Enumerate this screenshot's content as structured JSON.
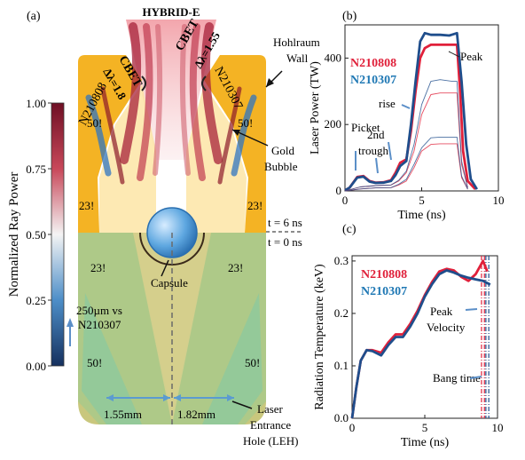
{
  "panel_a": {
    "label": "(a)",
    "title": "HYBRID-E",
    "cbet_left": "CBET",
    "cbet_left_delta": "Δλ=1.8",
    "cbet_right": "CBET",
    "cbet_right_delta": "Δλ=1.55",
    "shot_left": "N210808",
    "shot_right": "N210307",
    "hohlraum_wall": [
      "Hohlraum",
      "Wall"
    ],
    "gold_bubble": [
      "Gold",
      "Bubble"
    ],
    "time_top": "t = 6 ns",
    "time_bottom": "t = 0 ns",
    "capsule": "Capsule",
    "beam_angles": {
      "a23_left_upper": "23!",
      "a23_right_upper": "23!",
      "a50_left_upper": "50!",
      "a50_right_upper": "50!",
      "a23_left_lower": "23!",
      "a23_right_lower": "23!",
      "a50_left_lower": "50!",
      "a50_right_lower": "50!"
    },
    "note": [
      "250µm vs",
      "N210307"
    ],
    "leh_left": "1.55mm",
    "leh_right": "1.82mm",
    "leh_label": [
      "Laser",
      "Entrance",
      "Hole (LEH)"
    ],
    "colorbar": {
      "label": "Normalized Ray Power",
      "ticks": [
        "1.00",
        "0.75",
        "0.50",
        "0.25",
        "0.00"
      ],
      "color_high": "#8b1a2b",
      "color_mid": "#f2f2f2",
      "color_low": "#1f3f7a"
    }
  },
  "chart_data": [
    {
      "type": "line",
      "panel_label": "(b)",
      "title": "",
      "xlabel": "Time (ns)",
      "ylabel": "Laser Power (TW)",
      "xlim": [
        0,
        10
      ],
      "ylim": [
        0,
        500
      ],
      "xticks": [
        "0",
        "5",
        "10"
      ],
      "yticks": [
        "0",
        "200",
        "400"
      ],
      "legend": [
        "N210808",
        "N210307"
      ],
      "annotations": [
        "Peak",
        "rise",
        "Picket",
        "2nd",
        "trough"
      ],
      "series": [
        {
          "name": "N210808",
          "color": "#e0203a",
          "x": [
            0,
            0.3,
            0.8,
            1.2,
            1.6,
            2.0,
            2.5,
            3.0,
            3.3,
            3.6,
            4.0,
            4.3,
            4.6,
            4.9,
            5.2,
            5.6,
            6.5,
            7.0,
            7.3,
            7.5,
            7.7,
            8.0,
            8.5
          ],
          "y": [
            2,
            10,
            42,
            45,
            30,
            25,
            26,
            32,
            55,
            85,
            95,
            180,
            300,
            400,
            430,
            440,
            440,
            440,
            440,
            300,
            120,
            30,
            5
          ]
        },
        {
          "name": "N210307",
          "color": "#1f4e8c",
          "x": [
            0,
            0.3,
            0.8,
            1.2,
            1.6,
            2.0,
            2.5,
            3.0,
            3.3,
            3.6,
            4.0,
            4.3,
            4.6,
            4.9,
            5.2,
            5.6,
            6.2,
            6.8,
            7.3,
            7.6,
            7.9,
            8.2,
            8.6
          ],
          "y": [
            2,
            10,
            40,
            43,
            28,
            24,
            25,
            30,
            48,
            75,
            90,
            200,
            330,
            450,
            475,
            470,
            470,
            468,
            475,
            330,
            140,
            35,
            5
          ]
        },
        {
          "name": "",
          "color": "#e0203a",
          "x": [
            0,
            1,
            2,
            3,
            3.5,
            4,
            4.5,
            5,
            5.6,
            6.2,
            7,
            7.3,
            7.6,
            8
          ],
          "y": [
            0,
            12,
            16,
            18,
            30,
            55,
            120,
            230,
            290,
            295,
            295,
            295,
            80,
            10
          ]
        },
        {
          "name": "",
          "color": "#1f4e8c",
          "x": [
            0,
            1,
            2,
            3,
            3.5,
            4,
            4.5,
            5,
            5.6,
            6.2,
            7,
            7.3,
            7.6,
            8
          ],
          "y": [
            0,
            12,
            16,
            18,
            32,
            60,
            140,
            260,
            330,
            335,
            330,
            330,
            90,
            10
          ]
        },
        {
          "name": "",
          "color": "#e0203a",
          "x": [
            0,
            1,
            2,
            3,
            3.5,
            4,
            4.5,
            5,
            5.6,
            6.2,
            7,
            7.3,
            7.6,
            8
          ],
          "y": [
            0,
            6,
            9,
            10,
            18,
            30,
            70,
            120,
            140,
            142,
            142,
            142,
            40,
            5
          ]
        },
        {
          "name": "",
          "color": "#1f4e8c",
          "x": [
            0,
            1,
            2,
            3,
            3.5,
            4,
            4.5,
            5,
            5.6,
            6.2,
            7,
            7.3,
            7.6,
            8
          ],
          "y": [
            0,
            6,
            9,
            10,
            20,
            35,
            80,
            130,
            160,
            162,
            162,
            162,
            45,
            5
          ]
        }
      ]
    },
    {
      "type": "line",
      "panel_label": "(c)",
      "title": "",
      "xlabel": "Time (ns)",
      "ylabel": "Radiation Temperature (keV)",
      "xlim": [
        0,
        10
      ],
      "ylim": [
        0,
        0.31
      ],
      "xticks": [
        "0",
        "5",
        "10"
      ],
      "yticks": [
        "0.0",
        "0.1",
        "0.2",
        "0.3"
      ],
      "legend": [
        "N210808",
        "N210307"
      ],
      "annotations": [
        "Peak",
        "Velocity",
        "Bang time"
      ],
      "series": [
        {
          "name": "N210808",
          "color": "#e0203a",
          "x": [
            0,
            0.3,
            0.6,
            1.0,
            1.4,
            2.0,
            2.5,
            3.0,
            3.5,
            4.0,
            4.5,
            5.0,
            5.5,
            6.0,
            6.5,
            7.0,
            7.5,
            8.0,
            8.5,
            9.0,
            9.3
          ],
          "y": [
            0,
            0.06,
            0.11,
            0.13,
            0.13,
            0.125,
            0.145,
            0.16,
            0.16,
            0.18,
            0.205,
            0.235,
            0.26,
            0.28,
            0.285,
            0.282,
            0.27,
            0.262,
            0.275,
            0.3,
            0.28
          ]
        },
        {
          "name": "N210307",
          "color": "#1f4e8c",
          "x": [
            0,
            0.3,
            0.6,
            1.0,
            1.4,
            2.0,
            2.5,
            3.0,
            3.5,
            4.0,
            4.5,
            5.0,
            5.5,
            6.0,
            6.5,
            7.0,
            7.5,
            8.0,
            8.5,
            9.0,
            9.5
          ],
          "y": [
            0,
            0.06,
            0.11,
            0.13,
            0.128,
            0.12,
            0.14,
            0.155,
            0.155,
            0.175,
            0.2,
            0.232,
            0.256,
            0.275,
            0.282,
            0.278,
            0.272,
            0.268,
            0.265,
            0.262,
            0.255
          ]
        }
      ],
      "vlines": [
        {
          "x": 8.9,
          "color": "#e0203a"
        },
        {
          "x": 9.1,
          "color": "#e0203a"
        },
        {
          "x": 9.2,
          "color": "#1f4e8c"
        },
        {
          "x": 9.4,
          "color": "#1f4e8c"
        }
      ]
    }
  ]
}
